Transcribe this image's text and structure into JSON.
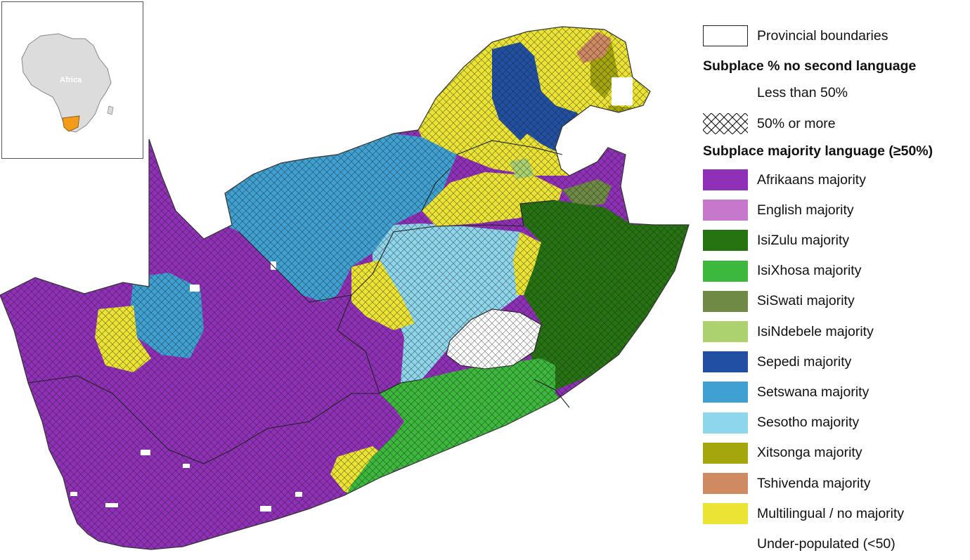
{
  "inset": {
    "label": "Africa"
  },
  "legend": {
    "boundaries_label": "Provincial boundaries",
    "second_language_title": "Subplace % no second language",
    "second_language_items": [
      {
        "label": "Less than 50%",
        "pattern": "none"
      },
      {
        "label": "50% or more",
        "pattern": "crosshatch"
      }
    ],
    "majority_title": "Subplace majority language (≥50%)",
    "majority_items": [
      {
        "label": "Afrikaans majority",
        "color": "#9030b8"
      },
      {
        "label": "English majority",
        "color": "#c878cc"
      },
      {
        "label": "IsiZulu majority",
        "color": "#267312"
      },
      {
        "label": "IsiXhosa majority",
        "color": "#3cb83c"
      },
      {
        "label": "SiSwati majority",
        "color": "#6e8a44"
      },
      {
        "label": "IsiNdebele majority",
        "color": "#abd26e"
      },
      {
        "label": "Sepedi majority",
        "color": "#2150a2"
      },
      {
        "label": "Setswana majority",
        "color": "#3fa0d2"
      },
      {
        "label": "Sesotho majority",
        "color": "#8ed6ec"
      },
      {
        "label": "Xitsonga majority",
        "color": "#a5a50c"
      },
      {
        "label": "Tshivenda majority",
        "color": "#cf8a62"
      },
      {
        "label": "Multilingual / no majority",
        "color": "#ece434"
      }
    ],
    "underpopulated_label": "Under-populated (<50)"
  },
  "colors": {
    "africa_fill": "#dcdcdc",
    "south_africa_highlight": "#f39c1a",
    "boundary": "#222222"
  }
}
